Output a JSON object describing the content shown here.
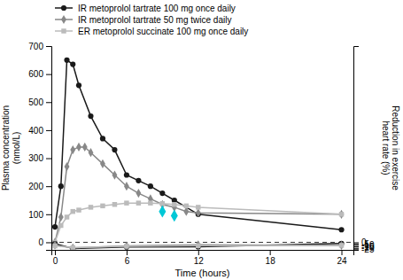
{
  "chart_data": {
    "type": "line",
    "x_label": "Time (hours)",
    "y_label": "Plasma concentration\n(nmol/L)",
    "y2_label": "Reduction in exercise\nheart rate (%)",
    "xlim": [
      -0.3,
      25
    ],
    "xticks": [
      0,
      6,
      12,
      18,
      24
    ],
    "ylim": [
      -27,
      700
    ],
    "yticks": [
      0,
      100,
      200,
      300,
      400,
      500,
      600,
      700
    ],
    "y2lim": [
      -27,
      700
    ],
    "y2ticks": [
      -25,
      -20,
      -15,
      -10,
      -5,
      0
    ],
    "grid": false,
    "legend": "upper left",
    "series": [
      {
        "name": "IR metoprolol tartrate 100 mg once daily",
        "color": "#1a1a1a",
        "marker": "circle",
        "x": [
          0,
          0.5,
          1,
          1.5,
          2,
          3,
          4,
          5,
          6,
          7,
          8,
          9,
          10,
          12,
          24
        ],
        "values": [
          55,
          200,
          650,
          635,
          560,
          450,
          370,
          330,
          240,
          220,
          200,
          175,
          150,
          100,
          45
        ]
      },
      {
        "name": "IR metoprolol tartrate 50 mg twice daily",
        "color": "#888888",
        "marker": "diamond",
        "x": [
          0,
          0.5,
          1,
          1.5,
          2,
          2.5,
          3,
          4,
          5,
          6,
          7,
          8,
          9,
          10,
          11,
          12,
          24
        ],
        "values": [
          0,
          90,
          270,
          330,
          340,
          340,
          320,
          280,
          240,
          200,
          175,
          155,
          135,
          125,
          110,
          105,
          100
        ]
      },
      {
        "name": "ER metoprolol succinate 100 mg once daily",
        "color": "#bbbbbb",
        "marker": "square",
        "x": [
          0,
          0.5,
          1,
          1.5,
          2,
          3,
          4,
          5,
          6,
          7,
          8,
          9,
          10,
          11,
          12,
          24
        ],
        "values": [
          0,
          60,
          90,
          110,
          115,
          125,
          130,
          135,
          140,
          140,
          140,
          138,
          135,
          130,
          125,
          100
        ]
      },
      {
        "color": "#00c8d7",
        "marker": "diamond",
        "line_style": "none",
        "x": [
          9,
          10
        ],
        "values": [
          110,
          95
        ]
      },
      {
        "color": "#1a1a1a",
        "marker": "circle",
        "axis": "y2",
        "x": [
          0,
          1.5,
          6,
          12,
          24
        ],
        "values": [
          -5,
          -22,
          -17,
          -16,
          -4
        ]
      },
      {
        "color": "#888888",
        "marker": "diamond",
        "axis": "y2",
        "x": [
          0,
          1.5,
          6,
          12,
          24
        ],
        "values": [
          -10,
          -20,
          -13,
          -9,
          -11
        ]
      },
      {
        "color": "#bbbbbb",
        "marker": "square",
        "axis": "y2",
        "x": [
          0,
          1.5,
          6,
          12,
          24
        ],
        "values": [
          -13,
          -19,
          -14,
          -12,
          -11
        ]
      }
    ]
  }
}
